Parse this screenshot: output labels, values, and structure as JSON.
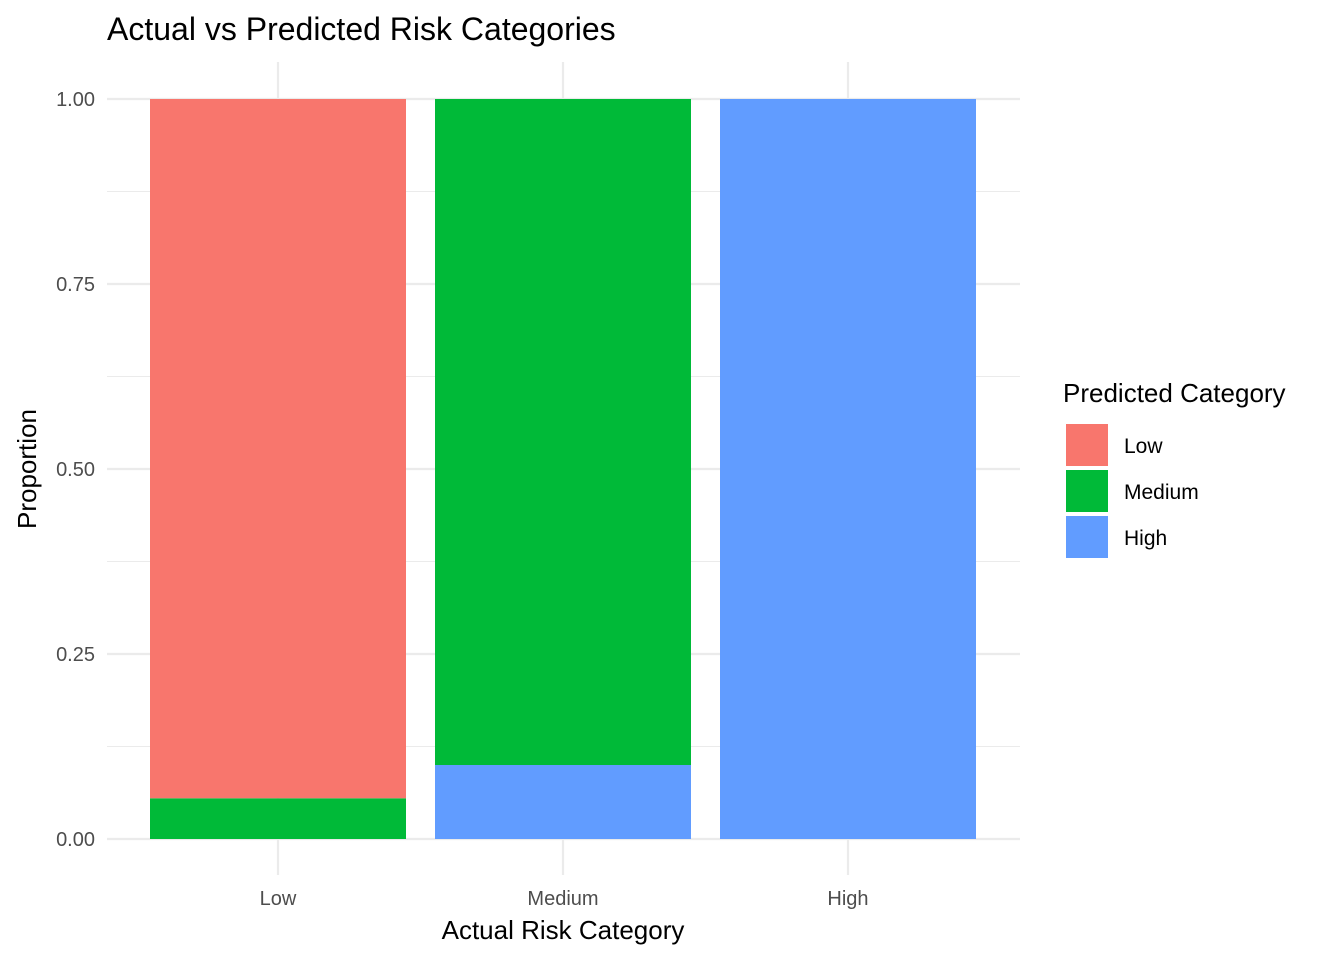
{
  "chart_data": {
    "type": "bar",
    "stacked": true,
    "title": "Actual vs Predicted Risk Categories",
    "xlabel": "Actual Risk Category",
    "ylabel": "Proportion",
    "categories": [
      "Low",
      "Medium",
      "High"
    ],
    "ylim": [
      0,
      1
    ],
    "yticks": [
      "0.00",
      "0.25",
      "0.50",
      "0.75",
      "1.00"
    ],
    "grid": true,
    "legend": {
      "title": "Predicted Category",
      "position": "right"
    },
    "series": [
      {
        "name": "Low",
        "color": "#F8766D",
        "values": [
          0.945,
          0.0,
          0.0
        ]
      },
      {
        "name": "Medium",
        "color": "#00BA38",
        "values": [
          0.055,
          0.9,
          0.0
        ]
      },
      {
        "name": "High",
        "color": "#619CFF",
        "values": [
          0.0,
          0.1,
          1.0
        ]
      }
    ]
  }
}
